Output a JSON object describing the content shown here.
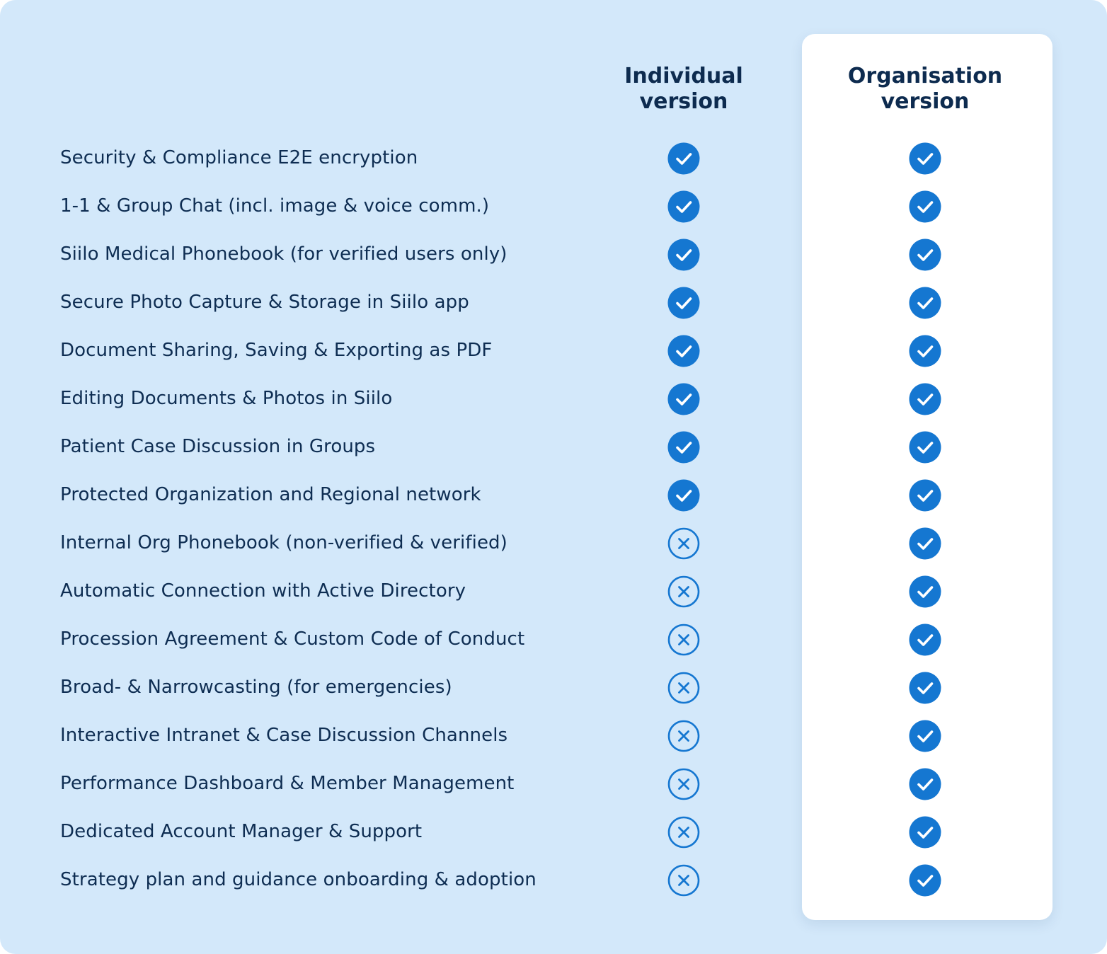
{
  "colors": {
    "background": "#d3e8fa",
    "card": "#ffffff",
    "text": "#0e2d52",
    "accent": "#1577d1"
  },
  "header": {
    "individual_line1": "Individual",
    "individual_line2": "version",
    "organisation_line1": "Organisation",
    "organisation_line2": "version"
  },
  "features": [
    {
      "label": "Security & Compliance E2E encryption",
      "individual": "check-icon",
      "organisation": "check-icon"
    },
    {
      "label": "1-1 & Group Chat (incl. image & voice comm.)",
      "individual": "check-icon",
      "organisation": "check-icon"
    },
    {
      "label": "Siilo Medical Phonebook (for verified users only)",
      "individual": "check-icon",
      "organisation": "check-icon"
    },
    {
      "label": "Secure Photo Capture & Storage in Siilo app",
      "individual": "check-icon",
      "organisation": "check-icon"
    },
    {
      "label": "Document Sharing, Saving & Exporting as PDF",
      "individual": "check-icon",
      "organisation": "check-icon"
    },
    {
      "label": "Editing Documents & Photos in Siilo",
      "individual": "check-icon",
      "organisation": "check-icon"
    },
    {
      "label": "Patient Case Discussion in Groups",
      "individual": "check-icon",
      "organisation": "check-icon"
    },
    {
      "label": "Protected Organization and Regional network",
      "individual": "check-icon",
      "organisation": "check-icon"
    },
    {
      "label": "Internal Org Phonebook (non-verified & verified)",
      "individual": "cross-icon",
      "organisation": "check-icon"
    },
    {
      "label": "Automatic Connection with Active Directory",
      "individual": "cross-icon",
      "organisation": "check-icon"
    },
    {
      "label": "Procession Agreement & Custom Code of Conduct",
      "individual": "cross-icon",
      "organisation": "check-icon"
    },
    {
      "label": "Broad- & Narrowcasting (for emergencies)",
      "individual": "cross-icon",
      "organisation": "check-icon"
    },
    {
      "label": "Interactive Intranet & Case Discussion Channels",
      "individual": "cross-icon",
      "organisation": "check-icon"
    },
    {
      "label": "Performance Dashboard & Member Management",
      "individual": "cross-icon",
      "organisation": "check-icon"
    },
    {
      "label": "Dedicated Account Manager & Support",
      "individual": "cross-icon",
      "organisation": "check-icon"
    },
    {
      "label": "Strategy plan and guidance onboarding & adoption",
      "individual": "cross-icon",
      "organisation": "check-icon"
    }
  ]
}
